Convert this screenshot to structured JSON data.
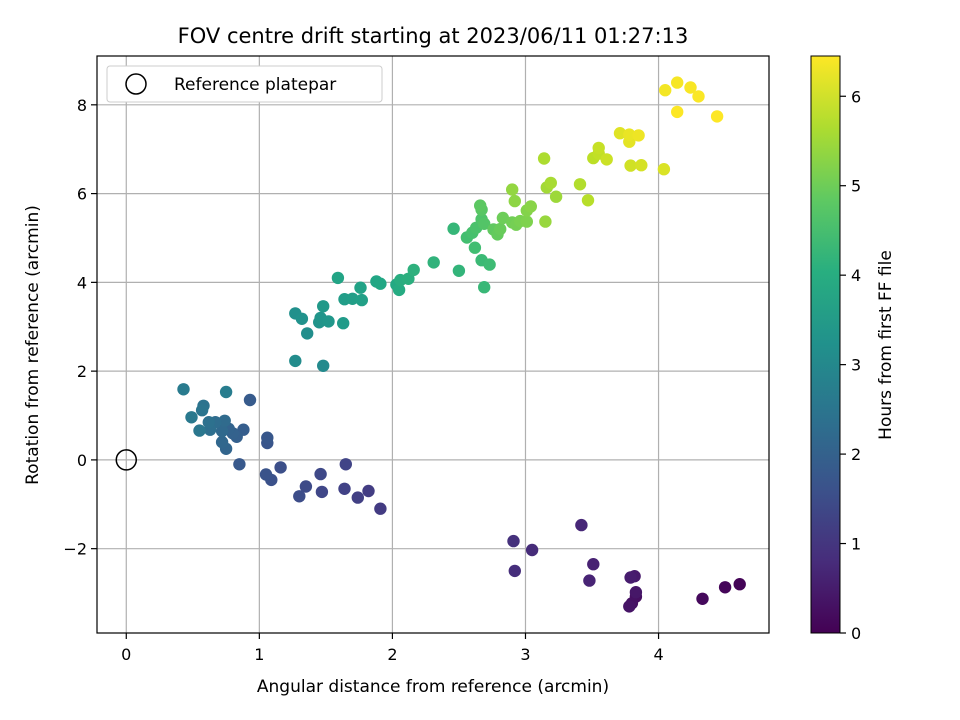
{
  "chart_data": {
    "type": "scatter",
    "title": "FOV centre drift starting at 2023/06/11 01:27:13",
    "xlabel": "Angular distance from reference (arcmin)",
    "ylabel": "Rotation from reference (arcmin)",
    "xlim": [
      -0.22,
      4.83
    ],
    "ylim": [
      -3.9,
      9.1
    ],
    "xticks": [
      0,
      1,
      2,
      3,
      4
    ],
    "yticks": [
      -2,
      0,
      2,
      4,
      6,
      8
    ],
    "xtick_labels": [
      "0",
      "1",
      "2",
      "3",
      "4"
    ],
    "ytick_labels": [
      "−2",
      "0",
      "2",
      "4",
      "6",
      "8"
    ],
    "grid": true,
    "legend": {
      "position": "top-left",
      "entries": [
        "Reference platepar"
      ]
    },
    "reference_point": {
      "x": 0,
      "y": 0
    },
    "colorbar": {
      "label": "Hours from first FF file",
      "range": [
        0,
        6.45
      ],
      "ticks": [
        0,
        1,
        2,
        3,
        4,
        5,
        6
      ],
      "tick_labels": [
        "0",
        "1",
        "2",
        "3",
        "4",
        "5",
        "6"
      ],
      "colormap": "viridis"
    },
    "points": [
      {
        "x": 4.61,
        "y": -2.8,
        "c": 0.05
      },
      {
        "x": 4.5,
        "y": -2.87,
        "c": 0.1
      },
      {
        "x": 4.33,
        "y": -3.13,
        "c": 0.15
      },
      {
        "x": 3.83,
        "y": -3.08,
        "c": 0.25
      },
      {
        "x": 3.8,
        "y": -3.23,
        "c": 0.3
      },
      {
        "x": 3.78,
        "y": -3.3,
        "c": 0.35
      },
      {
        "x": 3.83,
        "y": -2.98,
        "c": 0.4
      },
      {
        "x": 3.82,
        "y": -2.62,
        "c": 0.45
      },
      {
        "x": 3.79,
        "y": -2.65,
        "c": 0.5
      },
      {
        "x": 3.51,
        "y": -2.35,
        "c": 0.6
      },
      {
        "x": 3.48,
        "y": -2.72,
        "c": 0.65
      },
      {
        "x": 3.42,
        "y": -1.47,
        "c": 0.7
      },
      {
        "x": 3.05,
        "y": -2.03,
        "c": 0.8
      },
      {
        "x": 2.92,
        "y": -2.5,
        "c": 0.85
      },
      {
        "x": 2.91,
        "y": -1.83,
        "c": 0.9
      },
      {
        "x": 1.91,
        "y": -1.1,
        "c": 1.1
      },
      {
        "x": 1.82,
        "y": -0.7,
        "c": 1.15
      },
      {
        "x": 1.74,
        "y": -0.85,
        "c": 1.2
      },
      {
        "x": 1.64,
        "y": -0.65,
        "c": 1.25
      },
      {
        "x": 1.65,
        "y": -0.1,
        "c": 1.3
      },
      {
        "x": 1.47,
        "y": -0.72,
        "c": 1.35
      },
      {
        "x": 1.46,
        "y": -0.32,
        "c": 1.4
      },
      {
        "x": 1.35,
        "y": -0.6,
        "c": 1.45
      },
      {
        "x": 1.3,
        "y": -0.82,
        "c": 1.5
      },
      {
        "x": 1.16,
        "y": -0.17,
        "c": 1.55
      },
      {
        "x": 1.09,
        "y": -0.45,
        "c": 1.6
      },
      {
        "x": 1.05,
        "y": -0.33,
        "c": 1.65
      },
      {
        "x": 1.06,
        "y": 0.38,
        "c": 1.7
      },
      {
        "x": 1.06,
        "y": 0.5,
        "c": 1.75
      },
      {
        "x": 0.85,
        "y": -0.1,
        "c": 1.8
      },
      {
        "x": 0.93,
        "y": 1.35,
        "c": 1.85
      },
      {
        "x": 0.88,
        "y": 0.68,
        "c": 1.9
      },
      {
        "x": 0.83,
        "y": 0.52,
        "c": 1.95
      },
      {
        "x": 0.8,
        "y": 0.6,
        "c": 2.0
      },
      {
        "x": 0.77,
        "y": 0.7,
        "c": 2.05
      },
      {
        "x": 0.75,
        "y": 0.25,
        "c": 2.1
      },
      {
        "x": 0.72,
        "y": 0.4,
        "c": 2.15
      },
      {
        "x": 0.72,
        "y": 0.65,
        "c": 2.2
      },
      {
        "x": 0.74,
        "y": 0.88,
        "c": 2.25
      },
      {
        "x": 0.67,
        "y": 0.85,
        "c": 2.3
      },
      {
        "x": 0.63,
        "y": 0.68,
        "c": 2.35
      },
      {
        "x": 0.62,
        "y": 0.85,
        "c": 2.4
      },
      {
        "x": 0.58,
        "y": 1.22,
        "c": 2.45
      },
      {
        "x": 0.57,
        "y": 1.12,
        "c": 2.5
      },
      {
        "x": 0.55,
        "y": 0.66,
        "c": 2.55
      },
      {
        "x": 0.49,
        "y": 0.96,
        "c": 2.6
      },
      {
        "x": 0.43,
        "y": 1.59,
        "c": 2.65
      },
      {
        "x": 0.75,
        "y": 1.53,
        "c": 2.7
      },
      {
        "x": 1.48,
        "y": 2.12,
        "c": 3.05
      },
      {
        "x": 1.27,
        "y": 2.23,
        "c": 3.1
      },
      {
        "x": 1.36,
        "y": 2.85,
        "c": 3.15
      },
      {
        "x": 1.27,
        "y": 3.3,
        "c": 3.2
      },
      {
        "x": 1.32,
        "y": 3.18,
        "c": 3.25
      },
      {
        "x": 1.45,
        "y": 3.1,
        "c": 3.3
      },
      {
        "x": 1.46,
        "y": 3.2,
        "c": 3.35
      },
      {
        "x": 1.52,
        "y": 3.12,
        "c": 3.4
      },
      {
        "x": 1.48,
        "y": 3.46,
        "c": 3.45
      },
      {
        "x": 1.63,
        "y": 3.08,
        "c": 3.5
      },
      {
        "x": 1.64,
        "y": 3.62,
        "c": 3.55
      },
      {
        "x": 1.7,
        "y": 3.63,
        "c": 3.6
      },
      {
        "x": 1.77,
        "y": 3.6,
        "c": 3.65
      },
      {
        "x": 1.76,
        "y": 3.88,
        "c": 3.7
      },
      {
        "x": 1.59,
        "y": 4.1,
        "c": 3.75
      },
      {
        "x": 1.88,
        "y": 4.02,
        "c": 3.8
      },
      {
        "x": 1.91,
        "y": 3.97,
        "c": 3.85
      },
      {
        "x": 2.03,
        "y": 3.95,
        "c": 3.9
      },
      {
        "x": 2.05,
        "y": 3.83,
        "c": 3.95
      },
      {
        "x": 2.06,
        "y": 4.05,
        "c": 4.0
      },
      {
        "x": 2.12,
        "y": 4.08,
        "c": 4.05
      },
      {
        "x": 2.16,
        "y": 4.28,
        "c": 4.1
      },
      {
        "x": 2.31,
        "y": 4.45,
        "c": 4.15
      },
      {
        "x": 2.5,
        "y": 4.26,
        "c": 4.2
      },
      {
        "x": 2.46,
        "y": 5.21,
        "c": 4.25
      },
      {
        "x": 2.69,
        "y": 3.89,
        "c": 4.3
      },
      {
        "x": 2.67,
        "y": 4.5,
        "c": 4.35
      },
      {
        "x": 2.73,
        "y": 4.4,
        "c": 4.4
      },
      {
        "x": 2.62,
        "y": 4.78,
        "c": 4.45
      },
      {
        "x": 2.56,
        "y": 5.01,
        "c": 4.5
      },
      {
        "x": 2.6,
        "y": 5.12,
        "c": 4.55
      },
      {
        "x": 2.63,
        "y": 5.23,
        "c": 4.6
      },
      {
        "x": 2.67,
        "y": 5.42,
        "c": 4.65
      },
      {
        "x": 2.69,
        "y": 5.32,
        "c": 4.7
      },
      {
        "x": 2.67,
        "y": 5.64,
        "c": 4.75
      },
      {
        "x": 2.66,
        "y": 5.73,
        "c": 4.8
      },
      {
        "x": 2.76,
        "y": 5.19,
        "c": 4.85
      },
      {
        "x": 2.79,
        "y": 5.08,
        "c": 4.9
      },
      {
        "x": 2.81,
        "y": 5.2,
        "c": 4.95
      },
      {
        "x": 2.83,
        "y": 5.45,
        "c": 5.0
      },
      {
        "x": 2.9,
        "y": 5.35,
        "c": 5.05
      },
      {
        "x": 2.93,
        "y": 5.3,
        "c": 5.1
      },
      {
        "x": 2.96,
        "y": 5.38,
        "c": 5.15
      },
      {
        "x": 3.01,
        "y": 5.37,
        "c": 5.2
      },
      {
        "x": 3.01,
        "y": 5.62,
        "c": 5.25
      },
      {
        "x": 3.04,
        "y": 5.71,
        "c": 5.3
      },
      {
        "x": 2.92,
        "y": 5.83,
        "c": 5.35
      },
      {
        "x": 2.9,
        "y": 6.09,
        "c": 5.4
      },
      {
        "x": 3.15,
        "y": 5.37,
        "c": 5.45
      },
      {
        "x": 3.23,
        "y": 5.93,
        "c": 5.5
      },
      {
        "x": 3.16,
        "y": 6.14,
        "c": 5.55
      },
      {
        "x": 3.19,
        "y": 6.24,
        "c": 5.6
      },
      {
        "x": 3.14,
        "y": 6.79,
        "c": 5.65
      },
      {
        "x": 3.41,
        "y": 6.21,
        "c": 5.7
      },
      {
        "x": 3.47,
        "y": 5.85,
        "c": 5.75
      },
      {
        "x": 3.51,
        "y": 6.8,
        "c": 5.8
      },
      {
        "x": 3.55,
        "y": 6.9,
        "c": 5.85
      },
      {
        "x": 3.55,
        "y": 7.03,
        "c": 5.9
      },
      {
        "x": 3.61,
        "y": 6.77,
        "c": 5.95
      },
      {
        "x": 3.79,
        "y": 6.63,
        "c": 6.0
      },
      {
        "x": 3.87,
        "y": 6.64,
        "c": 6.05
      },
      {
        "x": 4.04,
        "y": 6.55,
        "c": 6.1
      },
      {
        "x": 3.71,
        "y": 7.36,
        "c": 6.15
      },
      {
        "x": 3.78,
        "y": 7.17,
        "c": 6.2
      },
      {
        "x": 3.78,
        "y": 7.33,
        "c": 6.25
      },
      {
        "x": 3.85,
        "y": 7.31,
        "c": 6.3
      },
      {
        "x": 4.05,
        "y": 8.33,
        "c": 6.35
      },
      {
        "x": 4.14,
        "y": 8.5,
        "c": 6.38
      },
      {
        "x": 4.24,
        "y": 8.39,
        "c": 6.4
      },
      {
        "x": 4.3,
        "y": 8.19,
        "c": 6.42
      },
      {
        "x": 4.14,
        "y": 7.84,
        "c": 6.44
      },
      {
        "x": 4.44,
        "y": 7.74,
        "c": 6.45
      }
    ]
  }
}
